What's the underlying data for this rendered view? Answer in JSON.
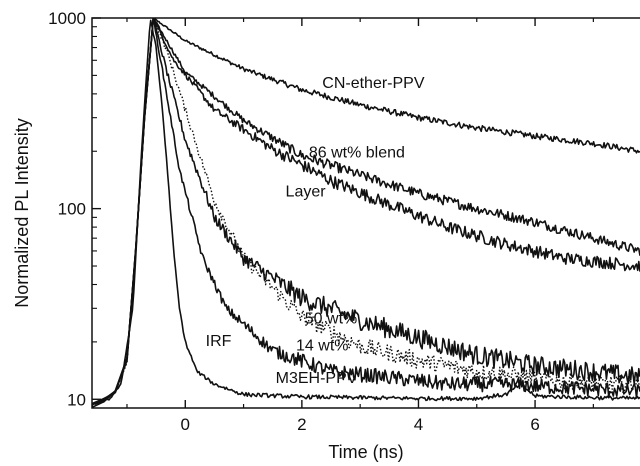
{
  "chart_data": {
    "type": "line",
    "title": "",
    "xlabel": "Time (ns)",
    "ylabel": "Normalized PL Intensity",
    "xlim": [
      -1.6,
      7.8
    ],
    "ylim": [
      9,
      1000
    ],
    "yscale": "log",
    "grid": false,
    "legend": "none",
    "x_ticks": [
      {
        "value": 0,
        "label": "0"
      },
      {
        "value": 2,
        "label": "2"
      },
      {
        "value": 4,
        "label": "4"
      },
      {
        "value": 6,
        "label": "6"
      }
    ],
    "y_ticks": [
      {
        "value": 10,
        "label": "10"
      },
      {
        "value": 100,
        "label": "100"
      },
      {
        "value": 1000,
        "label": "1000"
      }
    ],
    "series": [
      {
        "name": "CN-ether-PPV",
        "style": "solid",
        "noise": 0.012,
        "x": [
          -0.55,
          0,
          1,
          2,
          3,
          4,
          5,
          6,
          7,
          7.8
        ],
        "y": [
          1000,
          760,
          540,
          420,
          350,
          300,
          265,
          240,
          220,
          200
        ]
      },
      {
        "name": "86 wt% blend",
        "style": "solid",
        "noise": 0.02,
        "x": [
          -0.55,
          0,
          1,
          2,
          3,
          4,
          5,
          6,
          7,
          7.8
        ],
        "y": [
          1000,
          520,
          290,
          190,
          150,
          120,
          100,
          85,
          70,
          60
        ]
      },
      {
        "name": "Layer",
        "style": "solid",
        "noise": 0.025,
        "x": [
          -0.55,
          -0.2,
          0.5,
          1.5,
          2.5,
          3.5,
          4.5,
          5.5,
          6.5,
          7.8
        ],
        "y": [
          1000,
          600,
          330,
          205,
          140,
          105,
          80,
          65,
          55,
          50
        ]
      },
      {
        "name": "50 wt%",
        "style": "solid",
        "noise": 0.04,
        "x": [
          -0.55,
          -0.3,
          0,
          0.5,
          1,
          2,
          3,
          4,
          5,
          6,
          7,
          7.8
        ],
        "y": [
          1000,
          500,
          230,
          90,
          55,
          34,
          26,
          21,
          17,
          15,
          14,
          13
        ]
      },
      {
        "name": "14 wt%",
        "style": "dotted",
        "noise": 0.035,
        "x": [
          -0.55,
          -0.3,
          0,
          0.5,
          1,
          2,
          3,
          4,
          5,
          6,
          7,
          7.8
        ],
        "y": [
          1000,
          650,
          330,
          110,
          55,
          27,
          19,
          16,
          14,
          13,
          12,
          12
        ]
      },
      {
        "name": "M3EH-PPV",
        "style": "solid",
        "noise": 0.03,
        "x": [
          -0.55,
          -0.35,
          -0.1,
          0.3,
          0.7,
          1.5,
          2.5,
          3.5,
          4.5,
          5.5,
          6.5,
          7.8
        ],
        "y": [
          1000,
          450,
          160,
          55,
          30,
          18,
          14,
          13,
          12,
          12,
          11.5,
          11
        ]
      },
      {
        "name": "IRF",
        "style": "solid",
        "noise": 0.008,
        "x": [
          -1.6,
          -1.3,
          -1.1,
          -0.9,
          -0.75,
          -0.6,
          -0.5,
          -0.4,
          -0.3,
          -0.2,
          -0.1,
          0,
          0.2,
          0.5,
          1,
          2,
          3,
          4,
          5,
          5.5,
          5.75,
          6,
          7,
          7.8
        ],
        "y": [
          9.5,
          10,
          12,
          30,
          200,
          1000,
          700,
          350,
          150,
          60,
          30,
          20,
          14,
          12,
          10.6,
          10.3,
          10.2,
          10.1,
          10.1,
          10.6,
          12,
          10.4,
          10.2,
          10.1
        ]
      }
    ],
    "annotations": [
      {
        "text": "CN-ether-PPV",
        "x": 2.35,
        "y": 430
      },
      {
        "text": "86 wt% blend",
        "x": 2.12,
        "y": 185
      },
      {
        "text": "Layer",
        "x": 1.72,
        "y": 116
      },
      {
        "text": "50 wt%",
        "x": 2.05,
        "y": 25
      },
      {
        "text": "14 wt%",
        "x": 1.9,
        "y": 18
      },
      {
        "text": "IRF",
        "x": 0.35,
        "y": 19
      },
      {
        "text": "M3EH-PPV",
        "x": 1.55,
        "y": 12.2
      }
    ]
  }
}
